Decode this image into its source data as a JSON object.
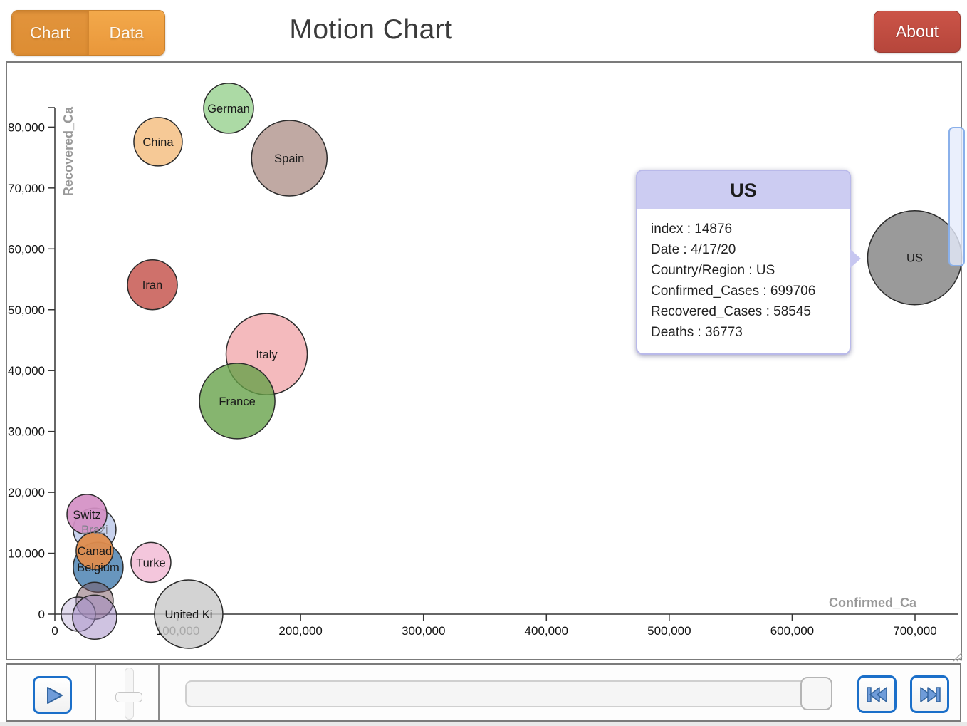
{
  "header": {
    "tabs": [
      {
        "label": "Chart",
        "active": true
      },
      {
        "label": "Data",
        "active": false
      }
    ],
    "title": "Motion Chart",
    "about_label": "About"
  },
  "colors": {
    "tab_orange_active": "#dd8d33",
    "tab_orange_inactive": "#f0a346",
    "about_red": "#c04f44",
    "control_border_blue": "#1b6fc9",
    "icon_blue_fill": "#6f9cd9",
    "axis_label_gray": "#999999",
    "tooltip_header_bg": "#ccccf2",
    "tooltip_border": "#b9b9ea"
  },
  "icons": {
    "play": "▶",
    "speed_slider": "vertical-slider",
    "skip_back": "⏮",
    "skip_forward": "⏭",
    "resize_grip": "⋱"
  },
  "tooltip": {
    "title": "US",
    "lines": [
      "index : 14876",
      "Date : 4/17/20",
      "Country/Region : US",
      "Confirmed_Cases : 699706",
      "Recovered_Cases : 58545",
      "Deaths : 36773"
    ]
  },
  "chart_data": {
    "type": "scatter",
    "title": "Motion Chart",
    "xlabel": "Confirmed_Ca",
    "ylabel": "Recovered_Ca",
    "xlim": [
      0,
      700000
    ],
    "ylim": [
      0,
      80000
    ],
    "grid": false,
    "legend": "none",
    "x_ticks": {
      "values": [
        0,
        100000,
        200000,
        300000,
        400000,
        500000,
        600000,
        700000
      ],
      "labels": [
        "0",
        "100,000",
        "200,000",
        "300,000",
        "400,000",
        "500,000",
        "600,000",
        "700,000"
      ]
    },
    "y_ticks": {
      "values": [
        0,
        10000,
        20000,
        30000,
        40000,
        50000,
        60000,
        70000,
        80000
      ],
      "labels": [
        "0",
        "10,000",
        "20,000",
        "30,000",
        "40,000",
        "50,000",
        "60,000",
        "70,000",
        "80,000"
      ]
    },
    "bubbles": [
      {
        "label": "Brazi",
        "x": 32400,
        "y": 13900,
        "r": 30,
        "color": "#c5d0ec",
        "opacity": 0.95,
        "label_color": "#82828e"
      },
      {
        "label": "Switz",
        "x": 26100,
        "y": 16400,
        "r": 28,
        "color": "#d48fc4",
        "opacity": 0.92
      },
      {
        "label": "Belgium",
        "x": 35300,
        "y": 7700,
        "r": 35,
        "color": "#6090ba",
        "opacity": 0.95
      },
      {
        "label": "Canad",
        "x": 32400,
        "y": 10400,
        "r": 26,
        "color": "#df8c4d",
        "opacity": 0.95
      },
      {
        "label": "",
        "x": 32400,
        "y": 2200,
        "r": 26,
        "color": "#7a5560",
        "opacity": 0.5
      },
      {
        "label": "",
        "x": 19100,
        "y": 0,
        "r": 24,
        "color": "#beafd7",
        "opacity": 0.45
      },
      {
        "label": "",
        "x": 32400,
        "y": -500,
        "r": 31,
        "color": "#a087c3",
        "opacity": 0.5
      },
      {
        "label": "Turke",
        "x": 78200,
        "y": 8500,
        "r": 28,
        "color": "#f3c3da",
        "opacity": 0.95
      },
      {
        "label": "United Ki",
        "x": 108900,
        "y": 0,
        "r": 48,
        "color": "#c9c9c9",
        "opacity": 0.82
      },
      {
        "label": "China",
        "x": 84000,
        "y": 77600,
        "r": 34,
        "color": "#f6c690",
        "opacity": 0.95
      },
      {
        "label": "German",
        "x": 141400,
        "y": 83100,
        "r": 35,
        "color": "#a8d8a0",
        "opacity": 0.95
      },
      {
        "label": "Spain",
        "x": 190800,
        "y": 74900,
        "r": 53,
        "color": "#bda49e",
        "opacity": 0.95
      },
      {
        "label": "Iran",
        "x": 79400,
        "y": 54100,
        "r": 35,
        "color": "#cc6963",
        "opacity": 0.95
      },
      {
        "label": "Italy",
        "x": 172400,
        "y": 42700,
        "r": 57,
        "color": "#f0a0a3",
        "opacity": 0.72
      },
      {
        "label": "France",
        "x": 148400,
        "y": 35000,
        "r": 53,
        "color": "#64a046",
        "opacity": 0.78
      },
      {
        "label": "US",
        "x": 699706,
        "y": 58545,
        "r": 66,
        "color": "#9a9a9a",
        "opacity": 1
      }
    ]
  }
}
